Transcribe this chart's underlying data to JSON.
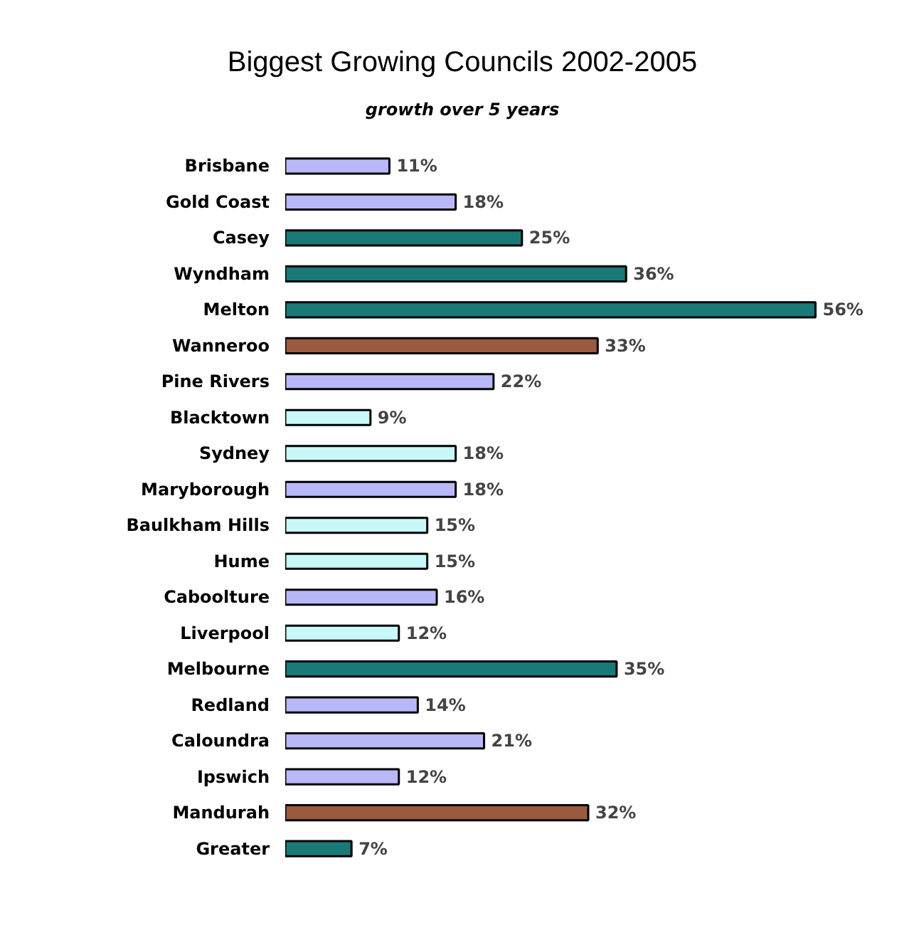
{
  "chart_data": {
    "type": "bar",
    "orientation": "horizontal",
    "title": "Biggest Growing Councils 2002-2005",
    "subtitle": "growth over 5 years",
    "categories": [
      "Brisbane",
      "Gold Coast",
      "Casey",
      "Wyndham",
      "Melton",
      "Wanneroo",
      "Pine Rivers",
      "Blacktown",
      "Sydney",
      "Maryborough",
      "Baulkham Hills",
      "Hume",
      "Caboolture",
      "Liverpool",
      "Melbourne",
      "Redland",
      "Caloundra",
      "Ipswich",
      "Mandurah",
      "Greater"
    ],
    "values": [
      11,
      18,
      25,
      36,
      56,
      33,
      22,
      9,
      18,
      18,
      15,
      15,
      16,
      12,
      35,
      14,
      21,
      12,
      32,
      7
    ],
    "value_labels": [
      "11%",
      "18%",
      "25%",
      "36%",
      "56%",
      "33%",
      "22%",
      "9%",
      "18%",
      "18%",
      "15%",
      "15%",
      "16%",
      "12%",
      "35%",
      "14%",
      "21%",
      "12%",
      "32%",
      "7%"
    ],
    "colors": [
      "#b8b8f8",
      "#b8b8f8",
      "#1a7a78",
      "#1a7a78",
      "#1a7a78",
      "#9a5a40",
      "#b8b8f8",
      "#c8f8f8",
      "#c8f8f8",
      "#b8b8f8",
      "#c8f8f8",
      "#c8f8f8",
      "#b8b8f8",
      "#c8f8f8",
      "#1a7a78",
      "#b8b8f8",
      "#b8b8f8",
      "#b8b8f8",
      "#9a5a40",
      "#1a7a78"
    ]
  }
}
